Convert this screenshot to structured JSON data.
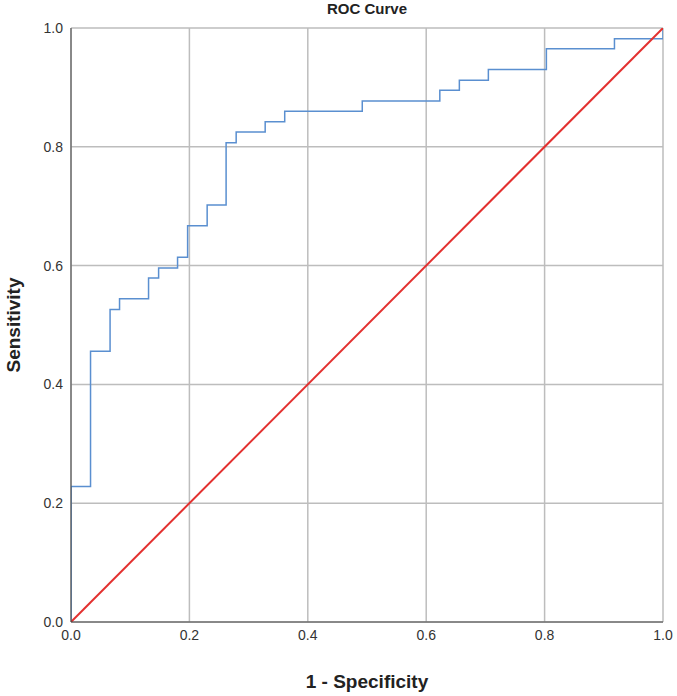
{
  "chart_data": {
    "type": "line",
    "title": "ROC Curve",
    "x_label": "1 - Specificity",
    "y_label": "Sensitivity",
    "xlim": [
      0,
      1
    ],
    "ylim": [
      0,
      1
    ],
    "xticks": [
      {
        "value": 0,
        "label": "0.0"
      },
      {
        "value": 0.2,
        "label": "0.2"
      },
      {
        "value": 0.4,
        "label": "0.4"
      },
      {
        "value": 0.6,
        "label": "0.6"
      },
      {
        "value": 0.8,
        "label": "0.8"
      },
      {
        "value": 1,
        "label": "1.0"
      }
    ],
    "yticks": [
      {
        "value": 0,
        "label": "0.0"
      },
      {
        "value": 0.2,
        "label": "0.2"
      },
      {
        "value": 0.4,
        "label": "0.4"
      },
      {
        "value": 0.6,
        "label": "0.6"
      },
      {
        "value": 0.8,
        "label": "0.8"
      },
      {
        "value": 1,
        "label": "1.0"
      }
    ],
    "grid": true,
    "series": [
      {
        "color": "#5a8fd0",
        "x": [
          0,
          0,
          0.033,
          0.033,
          0.066,
          0.066,
          0.082,
          0.082,
          0.131,
          0.131,
          0.148,
          0.148,
          0.18,
          0.18,
          0.197,
          0.197,
          0.23,
          0.23,
          0.262,
          0.262,
          0.279,
          0.279,
          0.328,
          0.328,
          0.361,
          0.361,
          0.492,
          0.492,
          0.623,
          0.623,
          0.656,
          0.656,
          0.705,
          0.705,
          0.803,
          0.803,
          0.918,
          0.918,
          1,
          1
        ],
        "values": [
          0,
          0.228,
          0.228,
          0.456,
          0.456,
          0.526,
          0.526,
          0.544,
          0.544,
          0.579,
          0.579,
          0.596,
          0.596,
          0.614,
          0.614,
          0.667,
          0.667,
          0.702,
          0.702,
          0.807,
          0.807,
          0.825,
          0.825,
          0.842,
          0.842,
          0.86,
          0.86,
          0.877,
          0.877,
          0.895,
          0.895,
          0.912,
          0.912,
          0.93,
          0.93,
          0.965,
          0.965,
          0.982,
          0.982,
          1
        ]
      },
      {
        "color": "#e3302f",
        "x": [
          0,
          1
        ],
        "values": [
          0,
          1
        ]
      }
    ]
  }
}
